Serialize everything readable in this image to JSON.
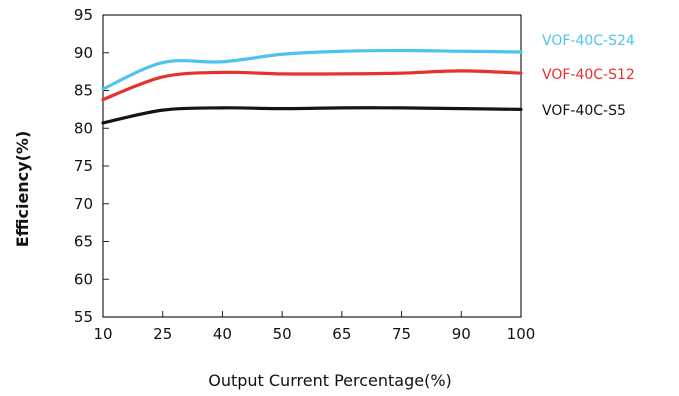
{
  "chart_data": {
    "type": "line",
    "title": "",
    "xlabel": "Output Current Percentage(%)",
    "ylabel": "Efficiency(%)",
    "x": [
      10,
      25,
      40,
      50,
      65,
      75,
      90,
      100
    ],
    "x_tick_labels": [
      "10",
      "25",
      "40",
      "50",
      "65",
      "75",
      "90",
      "100"
    ],
    "y_tick_labels": [
      "95",
      "90",
      "85",
      "80",
      "75",
      "70",
      "65",
      "60",
      "55"
    ],
    "y_ticks": [
      95,
      90,
      85,
      80,
      75,
      70,
      65,
      60,
      55
    ],
    "ylim": [
      55,
      95
    ],
    "grid": false,
    "legend_position": "right",
    "series": [
      {
        "name": "VOF-40C-S24",
        "color": "#4fc3f0",
        "values": [
          85.2,
          88.7,
          88.8,
          89.8,
          90.2,
          90.3,
          90.2,
          90.1
        ]
      },
      {
        "name": "VOF-40C-S12",
        "color": "#e8302e",
        "values": [
          83.8,
          86.8,
          87.4,
          87.2,
          87.2,
          87.3,
          87.6,
          87.3
        ]
      },
      {
        "name": "VOF-40C-S5",
        "color": "#141414",
        "values": [
          80.7,
          82.4,
          82.7,
          82.6,
          82.7,
          82.7,
          82.6,
          82.5
        ]
      }
    ]
  }
}
